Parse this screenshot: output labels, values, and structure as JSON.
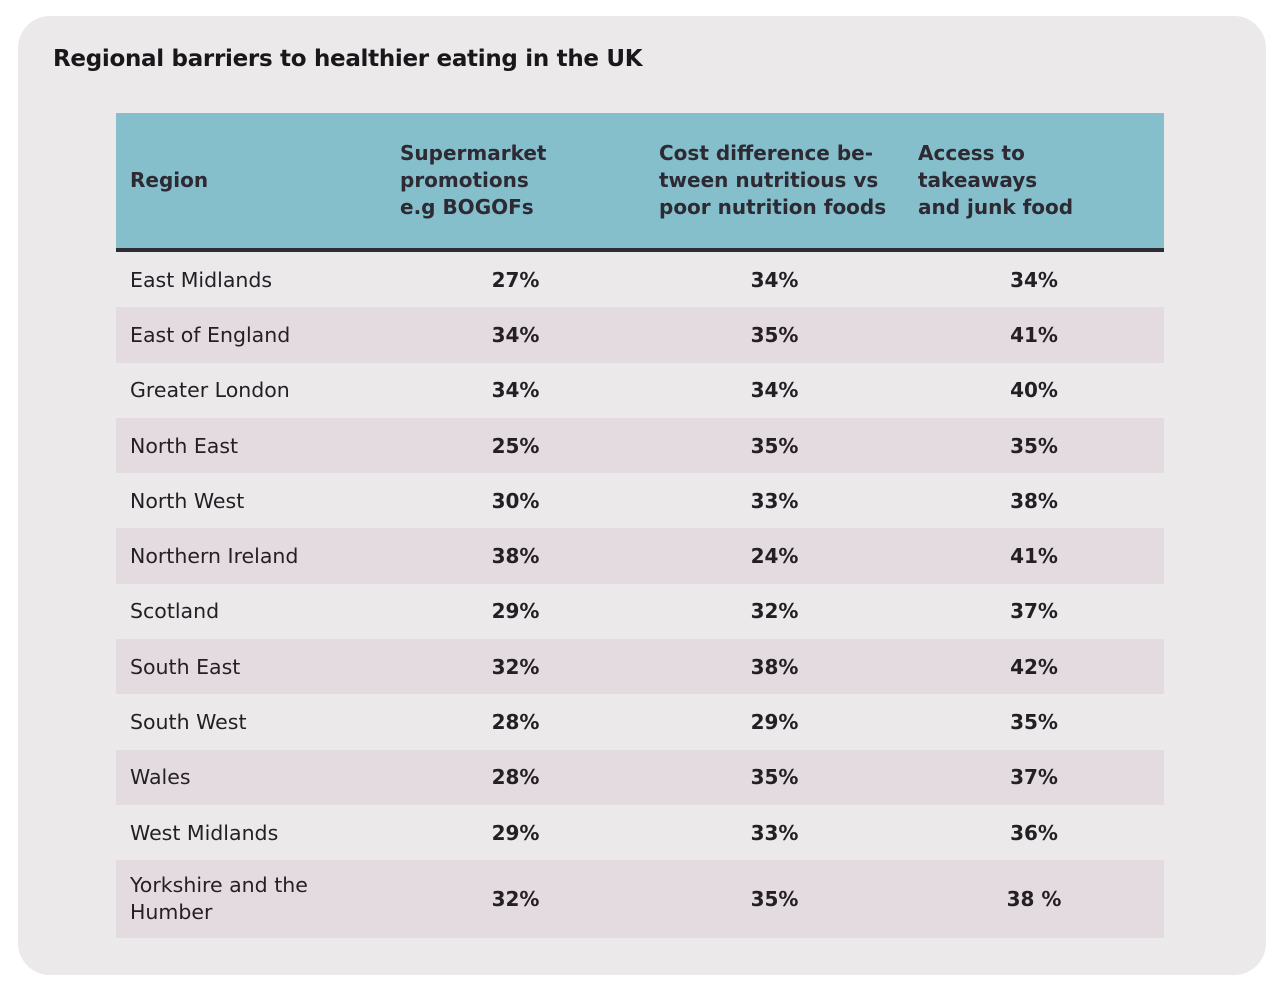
{
  "chart_data": {
    "type": "table",
    "title": "Regional barriers to healthier eating in the UK",
    "columns": [
      "Region",
      "Supermarket\npromotions\ne.g BOGOFs",
      "Cost difference be-\ntween nutritious vs\npoor nutrition foods",
      "Access to takeaways\nand junk food"
    ],
    "rows": [
      [
        "East Midlands",
        "27%",
        "34%",
        "34%"
      ],
      [
        "East of England",
        "34%",
        "35%",
        "41%"
      ],
      [
        "Greater London",
        "34%",
        "34%",
        "40%"
      ],
      [
        "North East",
        "25%",
        "35%",
        "35%"
      ],
      [
        "North West",
        "30%",
        "33%",
        "38%"
      ],
      [
        "Northern Ireland",
        "38%",
        "24%",
        "41%"
      ],
      [
        "Scotland",
        "29%",
        "32%",
        "37%"
      ],
      [
        "South East",
        "32%",
        "38%",
        "42%"
      ],
      [
        "South West",
        "28%",
        "29%",
        "35%"
      ],
      [
        "Wales",
        "28%",
        "35%",
        "37%"
      ],
      [
        "West Midlands",
        "29%",
        "33%",
        "36%"
      ],
      [
        "Yorkshire and the Humber",
        "32%",
        "35%",
        "38 %"
      ]
    ],
    "colors": {
      "header": "#85bfcb",
      "stripe": "#e4dbe0",
      "background": "#ebe9ea",
      "header_rule": "#2f2c35"
    }
  }
}
